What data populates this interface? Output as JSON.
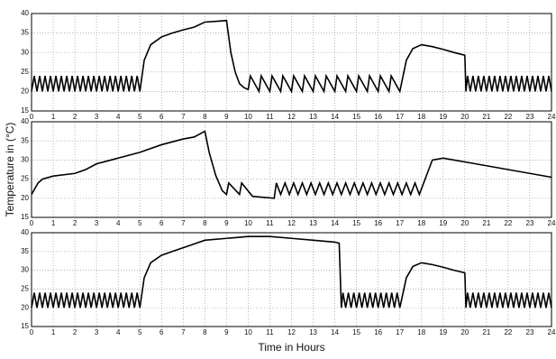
{
  "chart_data": [
    {
      "type": "line",
      "xlim": [
        0,
        24
      ],
      "ylim": [
        15,
        40
      ],
      "xticks": [
        0,
        1,
        2,
        3,
        4,
        5,
        6,
        7,
        8,
        9,
        10,
        11,
        12,
        13,
        14,
        15,
        16,
        17,
        18,
        19,
        20,
        21,
        22,
        23,
        24
      ],
      "yticks": [
        15,
        20,
        25,
        30,
        35,
        40
      ],
      "grid": true,
      "series": [
        {
          "color": "#000000",
          "x": [
            0,
            0.125,
            0.25,
            0.375,
            0.5,
            0.625,
            0.75,
            0.875,
            1,
            1.125,
            1.25,
            1.375,
            1.5,
            1.625,
            1.75,
            1.875,
            2,
            2.125,
            2.25,
            2.375,
            2.5,
            2.625,
            2.75,
            2.875,
            3,
            3.125,
            3.25,
            3.375,
            3.5,
            3.625,
            3.75,
            3.875,
            4,
            4.125,
            4.25,
            4.375,
            4.5,
            4.625,
            4.75,
            4.875,
            5,
            5.2,
            5.5,
            6,
            6.5,
            7,
            7.5,
            8,
            8.5,
            9,
            9.2,
            9.4,
            9.6,
            9.8,
            10,
            10.1,
            10.5,
            10.6,
            11,
            11.1,
            11.5,
            11.6,
            12,
            12.1,
            12.5,
            12.6,
            13,
            13.1,
            13.5,
            13.6,
            14,
            14.1,
            14.5,
            14.6,
            15,
            15.1,
            15.5,
            15.6,
            16,
            16.1,
            16.5,
            16.6,
            17,
            17.3,
            17.6,
            18,
            18.5,
            19,
            19.5,
            20,
            20.05,
            20.125,
            20.25,
            20.375,
            20.5,
            20.625,
            20.75,
            20.875,
            21,
            21.125,
            21.25,
            21.375,
            21.5,
            21.625,
            21.75,
            21.875,
            22,
            22.125,
            22.25,
            22.375,
            22.5,
            22.625,
            22.75,
            22.875,
            23,
            23.125,
            23.25,
            23.375,
            23.5,
            23.625,
            23.75,
            23.875,
            24
          ],
          "values": [
            20,
            24,
            20,
            24,
            20,
            24,
            20,
            24,
            20,
            24,
            20,
            24,
            20,
            24,
            20,
            24,
            20,
            24,
            20,
            24,
            20,
            24,
            20,
            24,
            20,
            24,
            20,
            24,
            20,
            24,
            20,
            24,
            20,
            24,
            20,
            24,
            20,
            24,
            20,
            24,
            20,
            28,
            32,
            34,
            35,
            35.8,
            36.5,
            37.8,
            38,
            38.2,
            30,
            25,
            22,
            21,
            20.5,
            24,
            20,
            24,
            20,
            24,
            20,
            24,
            20,
            24,
            20,
            24,
            20,
            24,
            20,
            24,
            20,
            24,
            20,
            24,
            20,
            24,
            20,
            24,
            20,
            24,
            20,
            24,
            20,
            28,
            31,
            32,
            31.5,
            30.8,
            30,
            29.3,
            20,
            24,
            20,
            24,
            20,
            24,
            20,
            24,
            20,
            24,
            20,
            24,
            20,
            24,
            20,
            24,
            20,
            24,
            20,
            24,
            20,
            24,
            20,
            24,
            20,
            24,
            20,
            24,
            20,
            24,
            20,
            24,
            20
          ]
        }
      ]
    },
    {
      "type": "line",
      "xlim": [
        0,
        24
      ],
      "ylim": [
        15,
        40
      ],
      "xticks": [
        0,
        1,
        2,
        3,
        4,
        5,
        6,
        7,
        8,
        9,
        10,
        11,
        12,
        13,
        14,
        15,
        16,
        17,
        18,
        19,
        20,
        21,
        22,
        23,
        24
      ],
      "yticks": [
        15,
        20,
        25,
        30,
        35,
        40
      ],
      "grid": true,
      "ylabel": "Temperature in (°C)",
      "series": [
        {
          "color": "#000000",
          "x": [
            0,
            0.3,
            0.5,
            1,
            2,
            2.5,
            3,
            4,
            5,
            6,
            7,
            7.5,
            8,
            8.2,
            8.5,
            8.8,
            9,
            9.1,
            9.6,
            9.7,
            10.2,
            11.2,
            11.3,
            11.5,
            11.7,
            11.9,
            12.1,
            12.3,
            12.5,
            12.7,
            12.9,
            13.1,
            13.3,
            13.5,
            13.7,
            13.9,
            14.1,
            14.3,
            14.5,
            14.7,
            14.9,
            15.1,
            15.3,
            15.5,
            15.7,
            15.9,
            16.1,
            16.3,
            16.5,
            16.7,
            16.9,
            17.1,
            17.3,
            17.5,
            17.7,
            17.9,
            18.5,
            19,
            20,
            22,
            24
          ],
          "values": [
            21,
            24,
            25,
            25.8,
            26.5,
            27.5,
            29,
            30.5,
            32,
            34,
            35.5,
            36,
            37.5,
            32,
            26,
            22,
            21,
            24,
            21,
            24,
            20.5,
            20,
            24,
            21,
            24,
            21,
            24,
            21,
            24,
            21,
            24,
            21,
            24,
            21,
            24,
            21,
            24,
            21,
            24,
            21,
            24,
            21,
            24,
            21,
            24,
            21,
            24,
            21,
            24,
            21,
            24,
            21,
            24,
            21,
            24,
            21,
            30,
            30.5,
            29.5,
            27.5,
            25.5
          ]
        }
      ]
    },
    {
      "type": "line",
      "xlim": [
        0,
        24
      ],
      "ylim": [
        15,
        40
      ],
      "xticks": [
        0,
        1,
        2,
        3,
        4,
        5,
        6,
        7,
        8,
        9,
        10,
        11,
        12,
        13,
        14,
        15,
        16,
        17,
        18,
        19,
        20,
        21,
        22,
        23,
        24
      ],
      "yticks": [
        15,
        20,
        25,
        30,
        35,
        40
      ],
      "grid": true,
      "xlabel": "Time in Hours",
      "series": [
        {
          "color": "#000000",
          "x": [
            0,
            0.125,
            0.25,
            0.375,
            0.5,
            0.625,
            0.75,
            0.875,
            1,
            1.125,
            1.25,
            1.375,
            1.5,
            1.625,
            1.75,
            1.875,
            2,
            2.125,
            2.25,
            2.375,
            2.5,
            2.625,
            2.75,
            2.875,
            3,
            3.125,
            3.25,
            3.375,
            3.5,
            3.625,
            3.75,
            3.875,
            4,
            4.125,
            4.25,
            4.375,
            4.5,
            4.625,
            4.75,
            4.875,
            5,
            5.2,
            5.5,
            6,
            6.5,
            7,
            7.5,
            8,
            9,
            10,
            11,
            12,
            13,
            14,
            14.2,
            14.3,
            14.375,
            14.5,
            14.625,
            14.75,
            14.875,
            15,
            15.125,
            15.25,
            15.375,
            15.5,
            15.625,
            15.75,
            15.875,
            16,
            16.125,
            16.25,
            16.375,
            16.5,
            16.625,
            16.75,
            16.875,
            17,
            17.3,
            17.6,
            18,
            18.5,
            19,
            19.5,
            20,
            20.05,
            20.125,
            20.25,
            20.375,
            20.5,
            20.625,
            20.75,
            20.875,
            21,
            21.125,
            21.25,
            21.375,
            21.5,
            21.625,
            21.75,
            21.875,
            22,
            22.125,
            22.25,
            22.375,
            22.5,
            22.625,
            22.75,
            22.875,
            23,
            23.125,
            23.25,
            23.375,
            23.5,
            23.625,
            23.75,
            23.875,
            24
          ],
          "values": [
            20,
            24,
            20,
            24,
            20,
            24,
            20,
            24,
            20,
            24,
            20,
            24,
            20,
            24,
            20,
            24,
            20,
            24,
            20,
            24,
            20,
            24,
            20,
            24,
            20,
            24,
            20,
            24,
            20,
            24,
            20,
            24,
            20,
            24,
            20,
            24,
            20,
            24,
            20,
            24,
            20,
            28,
            32,
            34,
            35,
            36,
            37,
            38,
            38.5,
            39,
            39,
            38.5,
            38,
            37.5,
            37.2,
            20,
            24,
            20,
            24,
            20,
            24,
            20,
            24,
            20,
            24,
            20,
            24,
            20,
            24,
            20,
            24,
            20,
            24,
            20,
            24,
            20,
            24,
            20,
            28,
            31,
            32,
            31.5,
            30.8,
            30,
            29.3,
            20,
            24,
            20,
            24,
            20,
            24,
            20,
            24,
            20,
            24,
            20,
            24,
            20,
            24,
            20,
            24,
            20,
            24,
            20,
            24,
            20,
            24,
            20,
            24,
            20,
            24,
            20,
            24,
            20,
            24,
            20,
            24,
            20
          ]
        }
      ]
    }
  ]
}
